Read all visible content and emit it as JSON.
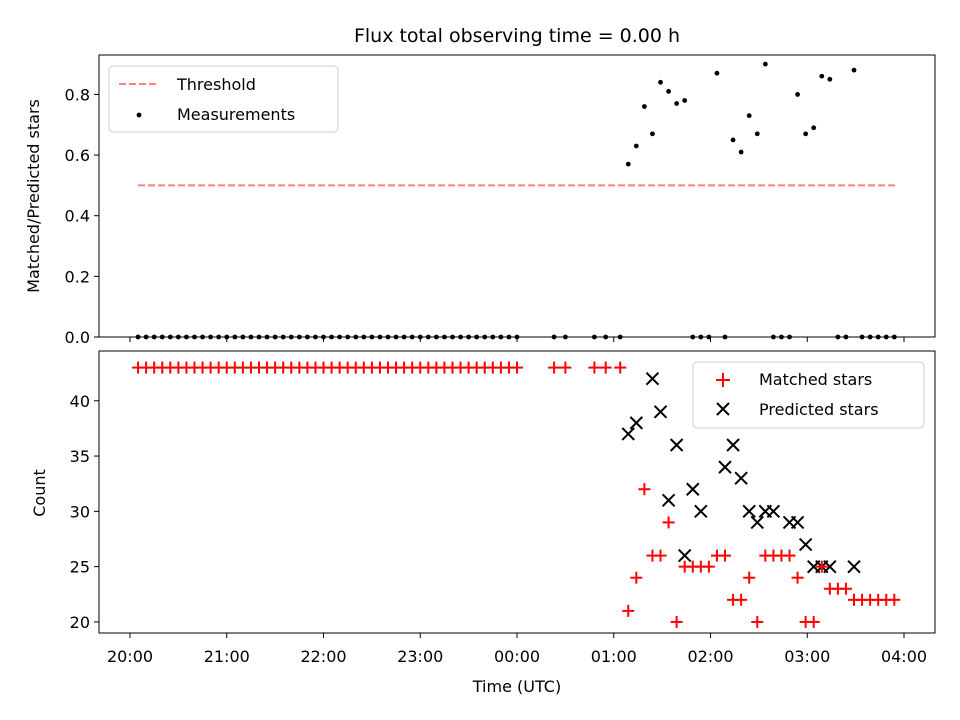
{
  "chart_data": [
    {
      "type": "scatter",
      "title": "Flux total observing time = 0.00 h",
      "xlabel": "",
      "ylabel": "Matched/Predicted stars",
      "x_time_ticks": [
        "20:00",
        "21:00",
        "22:00",
        "23:00",
        "00:00",
        "01:00",
        "02:00",
        "03:00",
        "04:00"
      ],
      "ylim": [
        0,
        0.93
      ],
      "y_ticks": [
        "0.0",
        "0.2",
        "0.4",
        "0.6",
        "0.8"
      ],
      "legend_position": "top-left",
      "threshold": {
        "name": "Threshold",
        "value": 0.5,
        "x_start": "20:05",
        "x_end": "03:55",
        "color": "#ff7f7f",
        "style": "dashed"
      },
      "series": [
        {
          "name": "Measurements",
          "color": "#000000",
          "marker": "dot",
          "x": [
            "20:05",
            "20:10",
            "20:15",
            "20:20",
            "20:25",
            "20:30",
            "20:35",
            "20:40",
            "20:45",
            "20:50",
            "20:55",
            "21:00",
            "21:05",
            "21:10",
            "21:15",
            "21:20",
            "21:25",
            "21:30",
            "21:35",
            "21:40",
            "21:45",
            "21:50",
            "21:55",
            "22:00",
            "22:05",
            "22:10",
            "22:15",
            "22:20",
            "22:25",
            "22:30",
            "22:35",
            "22:40",
            "22:45",
            "22:50",
            "22:55",
            "23:00",
            "23:05",
            "23:10",
            "23:15",
            "23:20",
            "23:25",
            "23:30",
            "23:35",
            "23:40",
            "23:45",
            "23:50",
            "23:55",
            "00:00",
            "00:23",
            "00:30",
            "00:48",
            "00:55",
            "01:04",
            "01:09",
            "01:14",
            "01:19",
            "01:24",
            "01:29",
            "01:34",
            "01:39",
            "01:44",
            "01:49",
            "01:54",
            "01:59",
            "02:04",
            "02:09",
            "02:14",
            "02:19",
            "02:24",
            "02:29",
            "02:34",
            "02:39",
            "02:44",
            "02:49",
            "02:54",
            "02:59",
            "03:04",
            "03:09",
            "03:14",
            "03:19",
            "03:24",
            "03:29",
            "03:34",
            "03:39",
            "03:44",
            "03:49",
            "03:54"
          ],
          "y": [
            0,
            0,
            0,
            0,
            0,
            0,
            0,
            0,
            0,
            0,
            0,
            0,
            0,
            0,
            0,
            0,
            0,
            0,
            0,
            0,
            0,
            0,
            0,
            0,
            0,
            0,
            0,
            0,
            0,
            0,
            0,
            0,
            0,
            0,
            0,
            0,
            0,
            0,
            0,
            0,
            0,
            0,
            0,
            0,
            0,
            0,
            0,
            0,
            0,
            0,
            0,
            0,
            0,
            0.57,
            0.63,
            0.76,
            0.67,
            0.84,
            0.81,
            0.77,
            0.78,
            0,
            0,
            0,
            0.87,
            0,
            0.65,
            0.61,
            0.73,
            0.67,
            0.9,
            0,
            0,
            0,
            0.8,
            0.67,
            0.69,
            0.86,
            0.85,
            0,
            0,
            0.88,
            0,
            0,
            0,
            0,
            0
          ]
        }
      ]
    },
    {
      "type": "scatter",
      "title": "",
      "xlabel": "Time (UTC)",
      "ylabel": "Count",
      "x_time_ticks": [
        "20:00",
        "21:00",
        "22:00",
        "23:00",
        "00:00",
        "01:00",
        "02:00",
        "03:00",
        "04:00"
      ],
      "ylim": [
        19,
        44.5
      ],
      "y_ticks": [
        "20",
        "25",
        "30",
        "35",
        "40"
      ],
      "legend_position": "top-right",
      "series": [
        {
          "name": "Matched stars",
          "color": "#ff0000",
          "marker": "plus",
          "x": [
            "20:05",
            "20:10",
            "20:15",
            "20:20",
            "20:25",
            "20:30",
            "20:35",
            "20:40",
            "20:45",
            "20:50",
            "20:55",
            "21:00",
            "21:05",
            "21:10",
            "21:15",
            "21:20",
            "21:25",
            "21:30",
            "21:35",
            "21:40",
            "21:45",
            "21:50",
            "21:55",
            "22:00",
            "22:05",
            "22:10",
            "22:15",
            "22:20",
            "22:25",
            "22:30",
            "22:35",
            "22:40",
            "22:45",
            "22:50",
            "22:55",
            "23:00",
            "23:05",
            "23:10",
            "23:15",
            "23:20",
            "23:25",
            "23:30",
            "23:35",
            "23:40",
            "23:45",
            "23:50",
            "23:55",
            "00:00",
            "00:23",
            "00:30",
            "00:48",
            "00:55",
            "01:04",
            "01:09",
            "01:14",
            "01:19",
            "01:24",
            "01:29",
            "01:34",
            "01:39",
            "01:44",
            "01:49",
            "01:54",
            "01:59",
            "02:04",
            "02:09",
            "02:14",
            "02:19",
            "02:24",
            "02:29",
            "02:34",
            "02:39",
            "02:44",
            "02:49",
            "02:54",
            "02:59",
            "03:04",
            "03:09",
            "03:14",
            "03:19",
            "03:24",
            "03:29",
            "03:34",
            "03:39",
            "03:44",
            "03:49",
            "03:54"
          ],
          "y": [
            43,
            43,
            43,
            43,
            43,
            43,
            43,
            43,
            43,
            43,
            43,
            43,
            43,
            43,
            43,
            43,
            43,
            43,
            43,
            43,
            43,
            43,
            43,
            43,
            43,
            43,
            43,
            43,
            43,
            43,
            43,
            43,
            43,
            43,
            43,
            43,
            43,
            43,
            43,
            43,
            43,
            43,
            43,
            43,
            43,
            43,
            43,
            43,
            43,
            43,
            43,
            43,
            43,
            21,
            24,
            32,
            26,
            26,
            29,
            20,
            25,
            25,
            25,
            25,
            26,
            26,
            22,
            22,
            24,
            20,
            26,
            26,
            26,
            26,
            24,
            20,
            20,
            25,
            23,
            23,
            23,
            22,
            22,
            22,
            22,
            22,
            22
          ]
        },
        {
          "name": "Predicted stars",
          "color": "#000000",
          "marker": "x",
          "x": [
            "01:09",
            "01:14",
            "01:24",
            "01:29",
            "01:34",
            "01:39",
            "01:44",
            "01:49",
            "01:54",
            "02:09",
            "02:14",
            "02:19",
            "02:24",
            "02:29",
            "02:34",
            "02:39",
            "02:49",
            "02:54",
            "02:59",
            "03:04",
            "03:09",
            "03:14",
            "03:29"
          ],
          "y": [
            37,
            38,
            42,
            39,
            31,
            36,
            26,
            32,
            30,
            34,
            36,
            33,
            30,
            29,
            30,
            30,
            29,
            29,
            27,
            25,
            25,
            25,
            25
          ]
        }
      ]
    }
  ]
}
